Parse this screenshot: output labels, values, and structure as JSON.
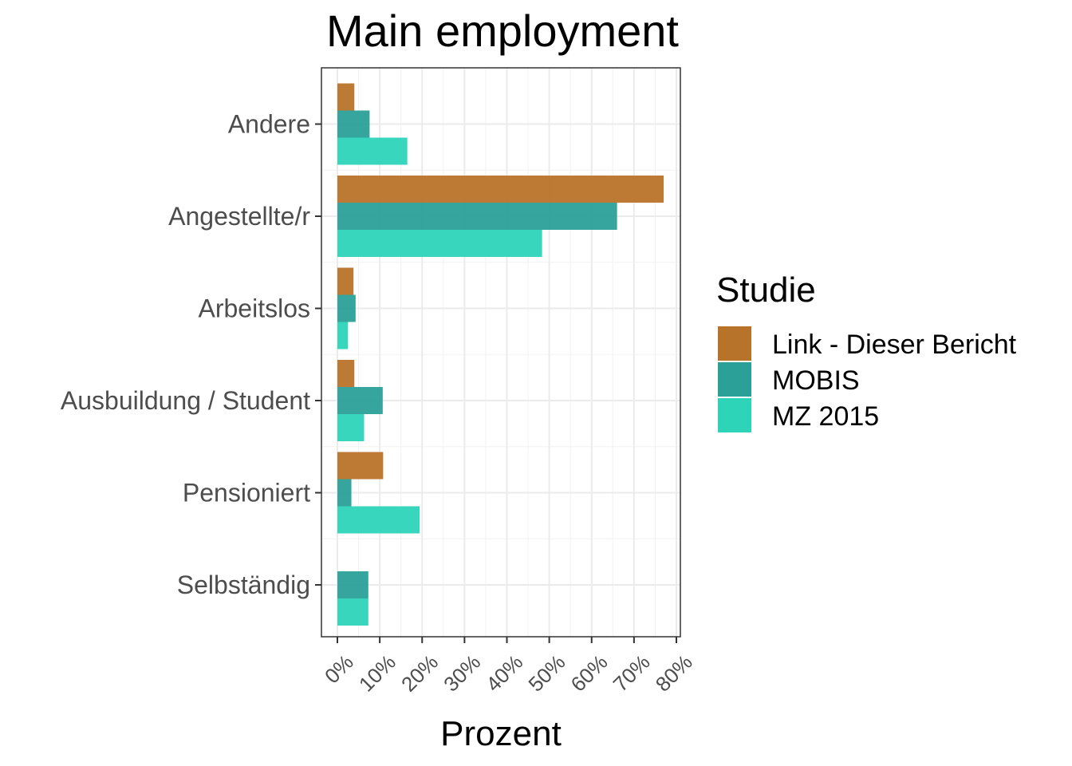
{
  "chart_data": {
    "type": "bar",
    "orientation": "horizontal",
    "title": "Main employment",
    "xlabel": "Prozent",
    "ylabel": "",
    "xlim": [
      0,
      80
    ],
    "x_ticks": [
      "0%",
      "10%",
      "20%",
      "30%",
      "40%",
      "50%",
      "60%",
      "70%",
      "80%"
    ],
    "grid": true,
    "legend_position": "right",
    "legend_title": "Studie",
    "categories": [
      "Andere",
      "Angestellte/r",
      "Arbeitslos",
      "Ausbuildung / Student",
      "Pensioniert",
      "Selbständig"
    ],
    "series": [
      {
        "name": "Link - Dieser Bericht",
        "color": "#b8732a",
        "values": [
          4.0,
          77.0,
          3.8,
          4.0,
          10.8,
          0
        ]
      },
      {
        "name": "MOBIS",
        "color": "#2aa098",
        "values": [
          7.6,
          66.0,
          4.3,
          10.7,
          3.3,
          7.3
        ]
      },
      {
        "name": "MZ 2015",
        "color": "#2dd4b8",
        "values": [
          16.5,
          48.3,
          2.5,
          6.3,
          19.4,
          7.3
        ]
      }
    ]
  }
}
